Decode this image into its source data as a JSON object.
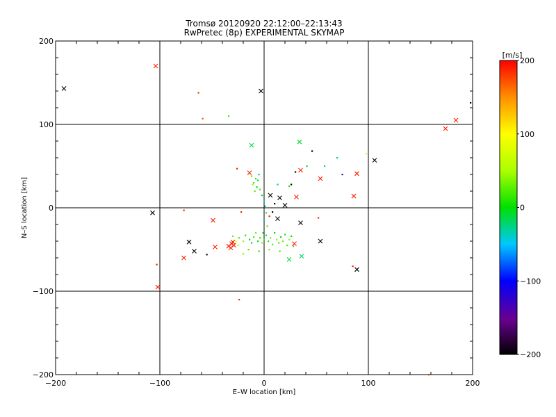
{
  "chart_data": {
    "type": "scatter",
    "title": "Tromsø 20120920 22:12:00–22:13:43",
    "subtitle": "RwPretec (8p) EXPERIMENTAL SKYMAP",
    "xlabel": "E–W location [km]",
    "ylabel": "N–S location [km]",
    "xlim": [
      -200,
      200
    ],
    "ylim": [
      -200,
      200
    ],
    "xticks": [
      -200,
      -100,
      0,
      100,
      200
    ],
    "yticks": [
      -200,
      -100,
      0,
      100,
      200
    ],
    "grid": true,
    "colorbar": {
      "label": "[m/s]",
      "min": -200,
      "max": 200,
      "ticks": [
        200,
        100,
        0,
        -100,
        -200
      ]
    },
    "x_markers": [
      {
        "x": -192,
        "y": 143,
        "v": -200
      },
      {
        "x": -104,
        "y": 170,
        "v": 190
      },
      {
        "x": -3,
        "y": 140,
        "v": -200
      },
      {
        "x": -107,
        "y": -6,
        "v": -200
      },
      {
        "x": -102,
        "y": -95,
        "v": 195
      },
      {
        "x": -77,
        "y": -60,
        "v": 190
      },
      {
        "x": -72,
        "y": -41,
        "v": -200
      },
      {
        "x": -67,
        "y": -52,
        "v": -200
      },
      {
        "x": -49,
        "y": -15,
        "v": 190
      },
      {
        "x": -47,
        "y": -47,
        "v": 190
      },
      {
        "x": -12,
        "y": 75,
        "v": -10
      },
      {
        "x": -14,
        "y": 42,
        "v": 190
      },
      {
        "x": 6,
        "y": 15,
        "v": -200
      },
      {
        "x": 15,
        "y": 12,
        "v": -200
      },
      {
        "x": 20,
        "y": 3,
        "v": -200
      },
      {
        "x": 13,
        "y": -13,
        "v": -200
      },
      {
        "x": 35,
        "y": -18,
        "v": -200
      },
      {
        "x": 35,
        "y": 45,
        "v": 190
      },
      {
        "x": 34,
        "y": 79,
        "v": -10
      },
      {
        "x": 31,
        "y": 13,
        "v": 190
      },
      {
        "x": 54,
        "y": 35,
        "v": 190
      },
      {
        "x": 89,
        "y": 41,
        "v": 190
      },
      {
        "x": 86,
        "y": 14,
        "v": 190
      },
      {
        "x": 106,
        "y": 57,
        "v": -200
      },
      {
        "x": 174,
        "y": 95,
        "v": 190
      },
      {
        "x": 184,
        "y": 105,
        "v": 190
      },
      {
        "x": 54,
        "y": -40,
        "v": -200
      },
      {
        "x": 36,
        "y": -58,
        "v": -20
      },
      {
        "x": 24,
        "y": -62,
        "v": -10
      },
      {
        "x": 29,
        "y": -43,
        "v": 190
      },
      {
        "x": 89,
        "y": -74,
        "v": -200
      },
      {
        "x": -29,
        "y": -45,
        "v": 190
      },
      {
        "x": -30,
        "y": -41,
        "v": 190
      },
      {
        "x": -32,
        "y": -48,
        "v": 190
      },
      {
        "x": -34,
        "y": -46,
        "v": 190
      },
      {
        "x": -31,
        "y": -43,
        "v": 190
      }
    ],
    "dots": [
      {
        "x": -63,
        "y": 138,
        "v": 185
      },
      {
        "x": -59,
        "y": 107,
        "v": 170
      },
      {
        "x": -34,
        "y": 110,
        "v": 20
      },
      {
        "x": -26,
        "y": 47,
        "v": 190
      },
      {
        "x": -77,
        "y": -3,
        "v": 190
      },
      {
        "x": -103,
        "y": -68,
        "v": 190
      },
      {
        "x": -24,
        "y": -110,
        "v": 190
      },
      {
        "x": -55,
        "y": -56,
        "v": -200
      },
      {
        "x": -22,
        "y": -5,
        "v": 190
      },
      {
        "x": 46,
        "y": 68,
        "v": -200
      },
      {
        "x": 70,
        "y": 60,
        "v": -20
      },
      {
        "x": 58,
        "y": 50,
        "v": -20
      },
      {
        "x": 75,
        "y": 40,
        "v": -130
      },
      {
        "x": 41,
        "y": 50,
        "v": -10
      },
      {
        "x": 30,
        "y": 43,
        "v": -200
      },
      {
        "x": 24,
        "y": 26,
        "v": 10
      },
      {
        "x": 26,
        "y": 28,
        "v": -200
      },
      {
        "x": 13,
        "y": 28,
        "v": -30
      },
      {
        "x": 10,
        "y": 5,
        "v": -200
      },
      {
        "x": 8,
        "y": -5,
        "v": -200
      },
      {
        "x": 5,
        "y": -10,
        "v": 190
      },
      {
        "x": 52,
        "y": -12,
        "v": 190
      },
      {
        "x": 98,
        "y": 65,
        "v": 110
      },
      {
        "x": 198,
        "y": 126,
        "v": -200
      },
      {
        "x": 85,
        "y": -70,
        "v": 190
      },
      {
        "x": 158,
        "y": -200,
        "v": 190
      },
      {
        "x": -10,
        "y": 30,
        "v": 20
      },
      {
        "x": -8,
        "y": 35,
        "v": 10
      },
      {
        "x": -12,
        "y": 38,
        "v": 30
      },
      {
        "x": -7,
        "y": 25,
        "v": 0
      },
      {
        "x": -5,
        "y": 40,
        "v": -20
      },
      {
        "x": -9,
        "y": 20,
        "v": 20
      },
      {
        "x": -6,
        "y": 33,
        "v": -10
      },
      {
        "x": -11,
        "y": 28,
        "v": 40
      },
      {
        "x": -4,
        "y": 22,
        "v": 20
      },
      {
        "x": -2,
        "y": 15,
        "v": 0
      },
      {
        "x": 0,
        "y": 8,
        "v": -40
      },
      {
        "x": 1,
        "y": 2,
        "v": -20
      },
      {
        "x": 2,
        "y": -6,
        "v": 10
      },
      {
        "x": 0,
        "y": -15,
        "v": -30
      },
      {
        "x": 3,
        "y": -22,
        "v": 20
      },
      {
        "x": -1,
        "y": -30,
        "v": 0
      },
      {
        "x": -30,
        "y": -34,
        "v": 30
      },
      {
        "x": -24,
        "y": -36,
        "v": 20
      },
      {
        "x": -20,
        "y": -40,
        "v": 40
      },
      {
        "x": -18,
        "y": -33,
        "v": 10
      },
      {
        "x": -14,
        "y": -38,
        "v": 0
      },
      {
        "x": -12,
        "y": -42,
        "v": -20
      },
      {
        "x": -10,
        "y": -35,
        "v": 20
      },
      {
        "x": -8,
        "y": -30,
        "v": 30
      },
      {
        "x": -6,
        "y": -40,
        "v": -10
      },
      {
        "x": -4,
        "y": -36,
        "v": 10
      },
      {
        "x": -2,
        "y": -42,
        "v": 40
      },
      {
        "x": 0,
        "y": -38,
        "v": 20
      },
      {
        "x": 2,
        "y": -33,
        "v": -30
      },
      {
        "x": 4,
        "y": -40,
        "v": 10
      },
      {
        "x": 6,
        "y": -36,
        "v": 30
      },
      {
        "x": 8,
        "y": -44,
        "v": 20
      },
      {
        "x": 10,
        "y": -30,
        "v": 0
      },
      {
        "x": 12,
        "y": -38,
        "v": 40
      },
      {
        "x": 14,
        "y": -42,
        "v": 20
      },
      {
        "x": 16,
        "y": -35,
        "v": -10
      },
      {
        "x": 18,
        "y": -40,
        "v": 30
      },
      {
        "x": 20,
        "y": -32,
        "v": 10
      },
      {
        "x": 22,
        "y": -45,
        "v": 20
      },
      {
        "x": 24,
        "y": -38,
        "v": 40
      },
      {
        "x": 26,
        "y": -34,
        "v": 0
      },
      {
        "x": -15,
        "y": -50,
        "v": 20
      },
      {
        "x": -5,
        "y": -52,
        "v": 10
      },
      {
        "x": 5,
        "y": -50,
        "v": 30
      },
      {
        "x": 15,
        "y": -52,
        "v": 20
      },
      {
        "x": -20,
        "y": -55,
        "v": 40
      },
      {
        "x": -27,
        "y": -40,
        "v": 80
      },
      {
        "x": -25,
        "y": -45,
        "v": 60
      },
      {
        "x": 28,
        "y": -46,
        "v": 20
      }
    ]
  }
}
